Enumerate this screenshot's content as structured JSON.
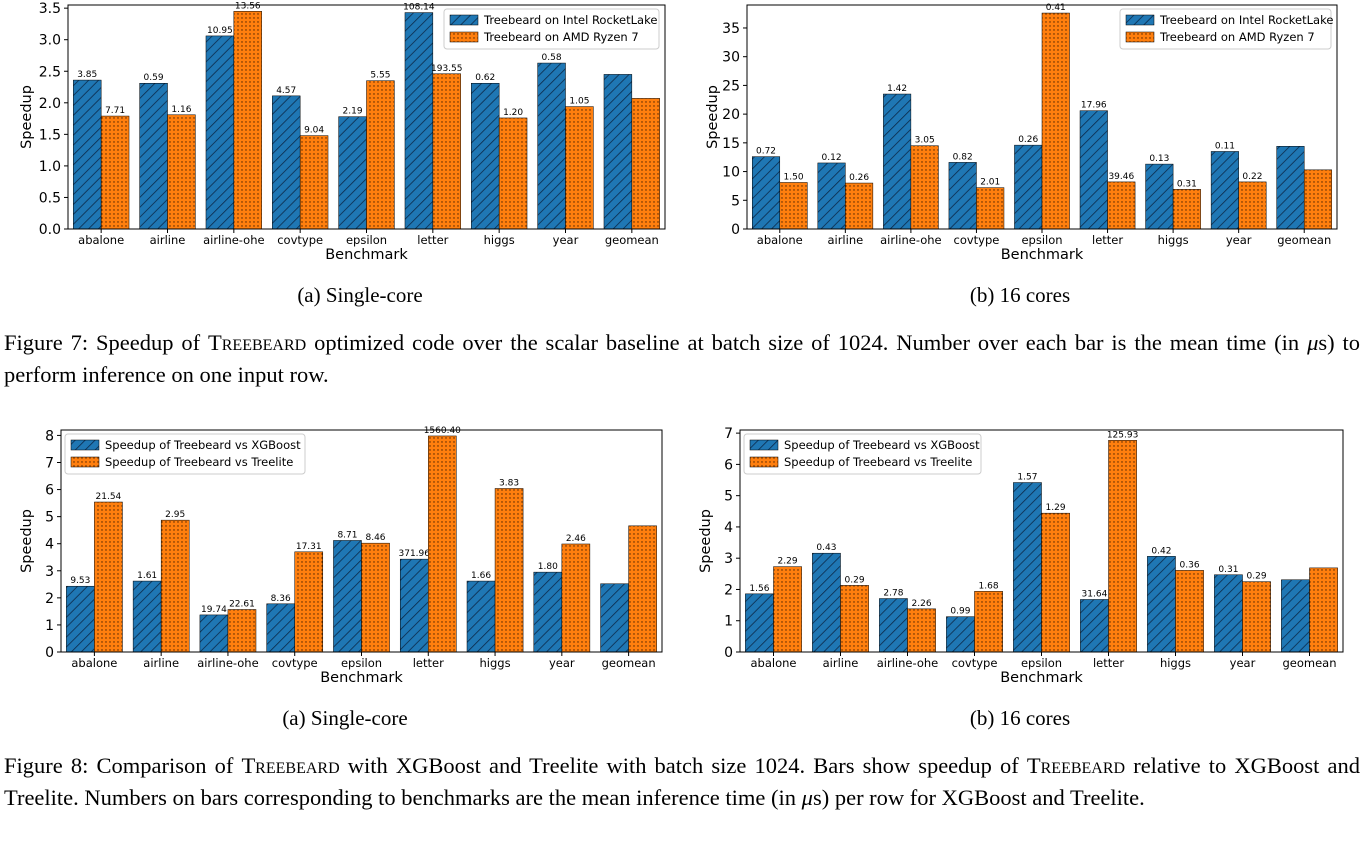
{
  "colors": {
    "blue": "#1f77b4",
    "orange": "#ff7f0e"
  },
  "chart_data": [
    {
      "type": "bar",
      "title": "",
      "xlabel": "Benchmark",
      "ylabel": "Speedup",
      "ylim": [
        0,
        3.55
      ],
      "yticks": [
        "0.0",
        "0.5",
        "1.0",
        "1.5",
        "2.0",
        "2.5",
        "3.0",
        "3.5"
      ],
      "grid": false,
      "legend_position": "top-right",
      "categories": [
        "abalone",
        "airline",
        "airline-ohe",
        "covtype",
        "epsilon",
        "letter",
        "higgs",
        "year",
        "geomean"
      ],
      "series": [
        {
          "name": "Treebeard on Intel RocketLake",
          "values": [
            2.36,
            2.31,
            3.06,
            2.11,
            1.78,
            3.43,
            2.31,
            2.63,
            2.45
          ],
          "labels": [
            "3.85",
            "0.59",
            "10.95",
            "4.57",
            "2.19",
            "108.14",
            "0.62",
            "0.58",
            ""
          ]
        },
        {
          "name": "Treebeard on AMD Ryzen 7",
          "values": [
            1.79,
            1.81,
            3.45,
            1.48,
            2.35,
            2.46,
            1.76,
            1.94,
            2.07
          ],
          "labels": [
            "7.71",
            "1.16",
            "13.56",
            "9.04",
            "5.55",
            "193.55",
            "1.20",
            "1.05",
            ""
          ]
        }
      ]
    },
    {
      "type": "bar",
      "title": "",
      "xlabel": "Benchmark",
      "ylabel": "Speedup",
      "ylim": [
        0,
        39
      ],
      "yticks": [
        "0",
        "5",
        "10",
        "15",
        "20",
        "25",
        "30",
        "35"
      ],
      "grid": false,
      "legend_position": "top-right",
      "categories": [
        "abalone",
        "airline",
        "airline-ohe",
        "covtype",
        "epsilon",
        "letter",
        "higgs",
        "year",
        "geomean"
      ],
      "series": [
        {
          "name": "Treebeard on Intel RocketLake",
          "values": [
            12.6,
            11.5,
            23.5,
            11.6,
            14.6,
            20.6,
            11.3,
            13.5,
            14.4
          ],
          "labels": [
            "0.72",
            "0.12",
            "1.42",
            "0.82",
            "0.26",
            "17.96",
            "0.13",
            "0.11",
            ""
          ]
        },
        {
          "name": "Treebeard on AMD Ryzen 7",
          "values": [
            8.1,
            8.0,
            14.5,
            7.2,
            37.6,
            8.2,
            6.9,
            8.2,
            10.3
          ],
          "labels": [
            "1.50",
            "0.26",
            "3.05",
            "2.01",
            "0.41",
            "39.46",
            "0.31",
            "0.22",
            ""
          ]
        }
      ]
    },
    {
      "type": "bar",
      "title": "",
      "xlabel": "Benchmark",
      "ylabel": "Speedup",
      "ylim": [
        0,
        8.2
      ],
      "yticks": [
        "0",
        "1",
        "2",
        "3",
        "4",
        "5",
        "6",
        "7",
        "8"
      ],
      "grid": false,
      "legend_position": "top-left",
      "categories": [
        "abalone",
        "airline",
        "airline-ohe",
        "covtype",
        "epsilon",
        "letter",
        "higgs",
        "year",
        "geomean"
      ],
      "series": [
        {
          "name": "Speedup of Treebeard vs XGBoost",
          "values": [
            2.43,
            2.62,
            1.37,
            1.78,
            4.12,
            3.43,
            2.62,
            2.95,
            2.52
          ],
          "labels": [
            "9.53",
            "1.61",
            "19.74",
            "8.36",
            "8.71",
            "371.96",
            "1.66",
            "1.80",
            ""
          ]
        },
        {
          "name": "Speedup of Treebeard vs Treelite",
          "values": [
            5.54,
            4.87,
            1.57,
            3.7,
            4.02,
            7.98,
            6.04,
            3.99,
            4.66
          ],
          "labels": [
            "21.54",
            "2.95",
            "22.61",
            "17.31",
            "8.46",
            "1560.40",
            "3.83",
            "2.46",
            ""
          ]
        }
      ]
    },
    {
      "type": "bar",
      "title": "",
      "xlabel": "Benchmark",
      "ylabel": "Speedup",
      "ylim": [
        0,
        7.1
      ],
      "yticks": [
        "0",
        "1",
        "2",
        "3",
        "4",
        "5",
        "6",
        "7"
      ],
      "grid": false,
      "legend_position": "top-left",
      "categories": [
        "abalone",
        "airline",
        "airline-ohe",
        "covtype",
        "epsilon",
        "letter",
        "higgs",
        "year",
        "geomean"
      ],
      "series": [
        {
          "name": "Speedup of Treebeard vs XGBoost",
          "values": [
            1.86,
            3.16,
            1.71,
            1.13,
            5.42,
            1.68,
            3.06,
            2.47,
            2.31
          ],
          "labels": [
            "1.56",
            "0.43",
            "2.78",
            "0.99",
            "1.57",
            "31.64",
            "0.42",
            "0.31",
            ""
          ]
        },
        {
          "name": "Speedup of Treebeard vs Treelite",
          "values": [
            2.73,
            2.13,
            1.38,
            1.94,
            4.44,
            6.77,
            2.61,
            2.25,
            2.69
          ],
          "labels": [
            "2.29",
            "0.29",
            "2.26",
            "1.68",
            "1.29",
            "125.93",
            "0.36",
            "0.29",
            ""
          ]
        }
      ]
    }
  ],
  "subcaptions": [
    "(a) Single-core",
    "(b) 16 cores",
    "(a) Single-core",
    "(b) 16 cores"
  ],
  "fig7": {
    "p1": "Figure 7: Speedup of ",
    "name": "Treebeard",
    "p2": " optimized code over the scalar baseline at batch size of 1024. Number over each bar is the mean time (in ",
    "mu": "μ",
    "p3": "s) to perform inference on one input row."
  },
  "fig8": {
    "p1": "Figure 8: Comparison of ",
    "name1": "Treebeard",
    "p2": " with XGBoost and Treelite with batch size 1024. Bars show speedup of ",
    "name2": "Treebeard",
    "p3": " relative to XGBoost and Treelite. Numbers on bars corresponding to benchmarks are the mean inference time (in ",
    "mu": "μ",
    "p4": "s) per row for XGBoost and Treelite."
  }
}
